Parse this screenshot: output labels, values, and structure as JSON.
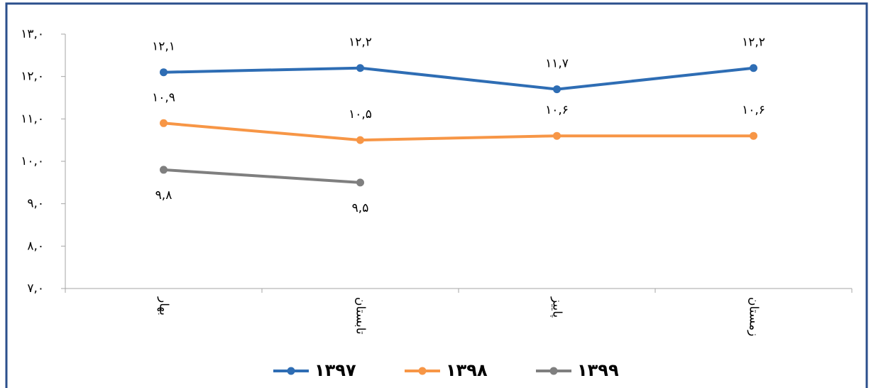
{
  "chart_data": {
    "type": "line",
    "categories": [
      "بهار",
      "تابستان",
      "پاییز",
      "زمستان"
    ],
    "series": [
      {
        "name": "۱۳۹۷",
        "color": "#2e6db4",
        "values": [
          12.1,
          12.2,
          11.7,
          12.2
        ],
        "value_labels": [
          "۱۲,۱",
          "۱۲,۲",
          "۱۱,۷",
          "۱۲,۲"
        ]
      },
      {
        "name": "۱۳۹۸",
        "color": "#f79646",
        "values": [
          10.9,
          10.5,
          10.6,
          10.6
        ],
        "value_labels": [
          "۱۰,۹",
          "۱۰,۵",
          "۱۰,۶",
          "۱۰,۶"
        ]
      },
      {
        "name": "۱۳۹۹",
        "color": "#7f7f7f",
        "values": [
          9.8,
          9.5,
          null,
          null
        ],
        "value_labels": [
          "۹,۸",
          "۹,۵",
          null,
          null
        ]
      }
    ],
    "ylim": [
      7,
      13
    ],
    "yticks": [
      {
        "value": 7,
        "label": "۷,۰"
      },
      {
        "value": 8,
        "label": "۸,۰"
      },
      {
        "value": 9,
        "label": "۹,۰"
      },
      {
        "value": 10,
        "label": "۱۰,۰"
      },
      {
        "value": 11,
        "label": "۱۱,۰"
      },
      {
        "value": 12,
        "label": "۱۲,۰"
      },
      {
        "value": 13,
        "label": "۱۳,۰"
      }
    ],
    "grid": false,
    "legend": "bottom"
  }
}
